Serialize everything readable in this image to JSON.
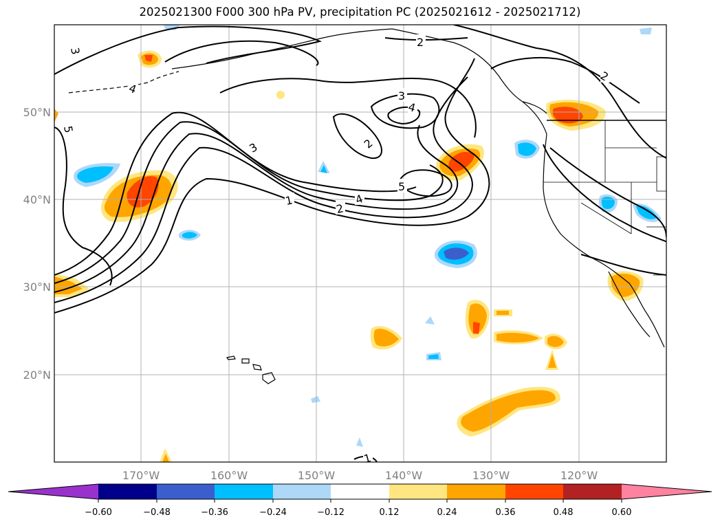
{
  "title": "2025021300 F000 300 hPa PV, precipitation PC (2025021612 - 2025021712)",
  "lat_labels": [
    "50°N",
    "40°N",
    "30°N",
    "20°N"
  ],
  "lon_labels": [
    "170°W",
    "160°W",
    "150°W",
    "140°W",
    "130°W",
    "120°W"
  ],
  "contour_labels": [
    "1",
    "2",
    "3",
    "4",
    "5"
  ],
  "colorbar": {
    "ticks": [
      "−0.60",
      "−0.48",
      "−0.36",
      "−0.24",
      "−0.12",
      "0.12",
      "0.24",
      "0.36",
      "0.48",
      "0.60"
    ],
    "colors": [
      "#9932cc",
      "#00008b",
      "#3a5fcd",
      "#00bfff",
      "#add8f8",
      "#ffffff",
      "#ffe680",
      "#ffa500",
      "#ff4500",
      "#b22222",
      "#ff82a0"
    ]
  },
  "colors": {
    "pos_low": "#ffe680",
    "pos_mid": "#ffa500",
    "pos_high": "#ff4500",
    "pos_top": "#b22222",
    "neg_low": "#add8f8",
    "neg_mid": "#00bfff",
    "neg_high": "#3a5fcd",
    "grid": "#b0b0b0",
    "label": "#808080"
  }
}
